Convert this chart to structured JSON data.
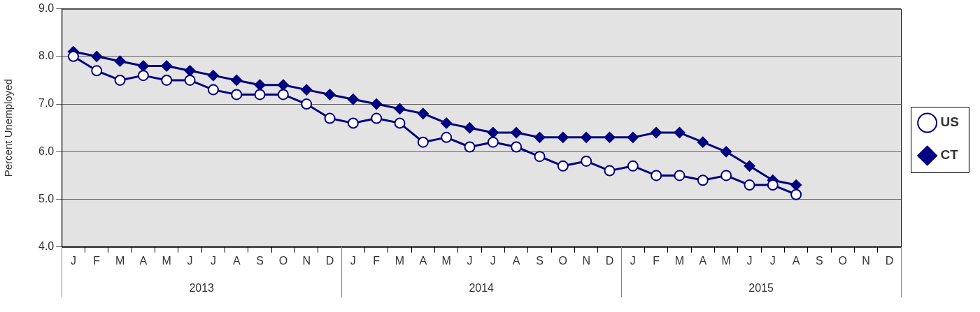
{
  "chart_data": {
    "type": "line",
    "ylabel": "Percent Unemployed",
    "categories": [
      "J",
      "F",
      "M",
      "A",
      "M",
      "J",
      "J",
      "A",
      "S",
      "O",
      "N",
      "D",
      "J",
      "F",
      "M",
      "A",
      "M",
      "J",
      "J",
      "A",
      "S",
      "O",
      "N",
      "D",
      "J",
      "F",
      "M",
      "A",
      "M",
      "J",
      "J",
      "A",
      "S",
      "O",
      "N",
      "D"
    ],
    "annotations": [
      "2013",
      "2014",
      "2015"
    ],
    "series": [
      {
        "name": "US",
        "color": "#000080",
        "marker": "circle",
        "values": [
          8.0,
          7.7,
          7.5,
          7.6,
          7.5,
          7.5,
          7.3,
          7.2,
          7.2,
          7.2,
          7.0,
          6.7,
          6.6,
          6.7,
          6.6,
          6.2,
          6.3,
          6.1,
          6.2,
          6.1,
          5.9,
          5.7,
          5.8,
          5.6,
          5.7,
          5.5,
          5.5,
          5.4,
          5.5,
          5.3,
          5.3,
          5.1,
          null,
          null,
          null,
          null
        ]
      },
      {
        "name": "CT",
        "color": "#000080",
        "marker": "diamond",
        "values": [
          8.1,
          8.0,
          7.9,
          7.8,
          7.8,
          7.7,
          7.6,
          7.5,
          7.4,
          7.4,
          7.3,
          7.2,
          7.1,
          7.0,
          6.9,
          6.8,
          6.6,
          6.5,
          6.4,
          6.4,
          6.3,
          6.3,
          6.3,
          6.3,
          6.3,
          6.4,
          6.4,
          6.2,
          6.0,
          5.7,
          5.4,
          5.3,
          null,
          null,
          null,
          null
        ]
      }
    ],
    "ylim": [
      4,
      9
    ],
    "yticks": [
      {
        "value": 4,
        "label": "4.0"
      },
      {
        "value": 5,
        "label": "5.0"
      },
      {
        "value": 6,
        "label": "6.0"
      },
      {
        "value": 7,
        "label": "7.0"
      },
      {
        "value": 8,
        "label": "8.0"
      },
      {
        "value": 9,
        "label": "9.0"
      }
    ],
    "grid": "y",
    "legend": "right",
    "line_style": "solid"
  }
}
